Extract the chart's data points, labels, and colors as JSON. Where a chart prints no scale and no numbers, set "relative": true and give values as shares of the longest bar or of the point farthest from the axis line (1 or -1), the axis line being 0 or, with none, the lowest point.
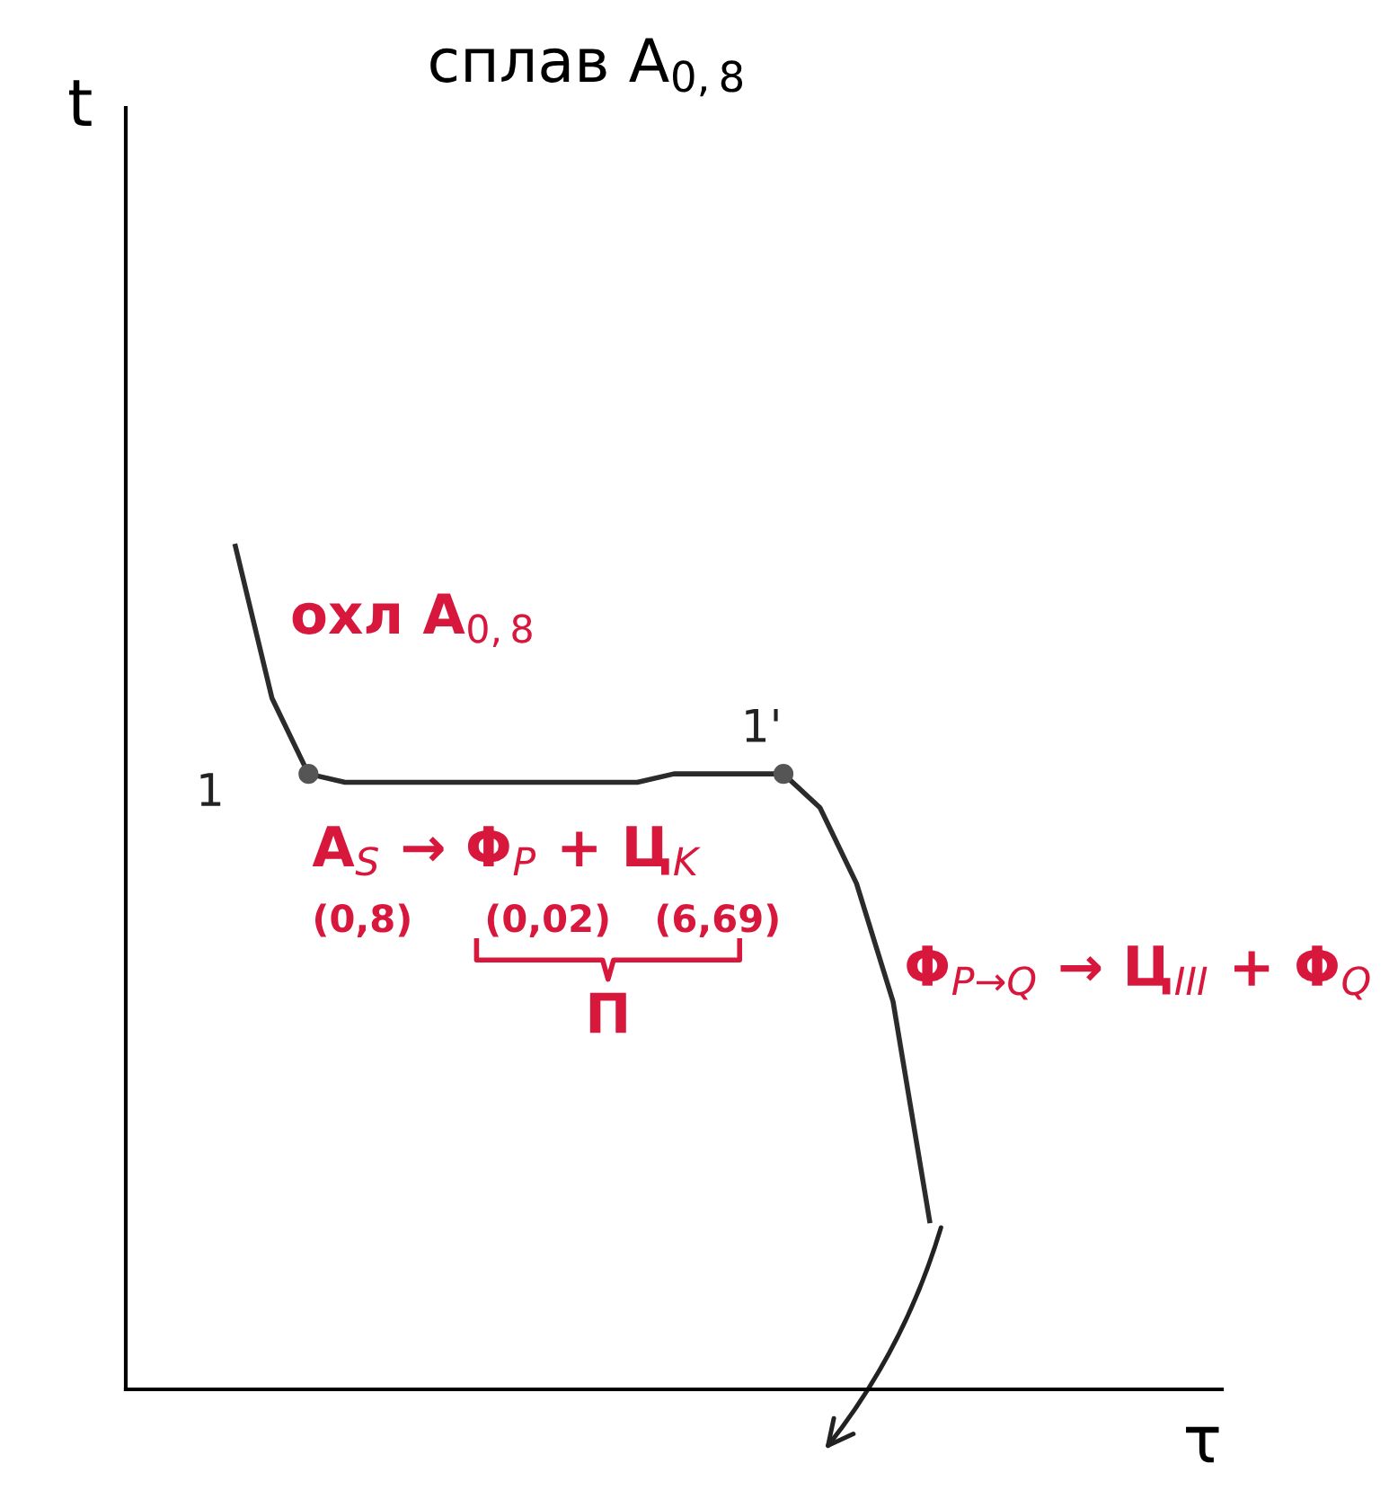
{
  "chart_data": {
    "type": "line",
    "title": "сплав A$_{0,8}$",
    "xlabel": "τ",
    "relative": true,
    "categories": [
      null,
      null,
      null,
      null,
      null,
      null,
      null,
      null,
      null,
      null,
      null,
      null,
      null,
      null,
      null,
      null,
      null,
      null,
      null,
      null
    ],
    "series": [
      {
        "color": "#2b2b2b",
        "values": [
          1,
          0.82,
          0.73,
          0.72,
          0.72,
          0.72,
          0.72,
          0.72,
          0.72,
          0.72,
          0.72,
          0.72,
          0.73,
          0.73,
          0.73,
          0.73,
          0.69,
          0.6,
          0.46,
          0.2
        ]
      }
    ],
    "annotations": [
      "охл A$_{0,8}$",
      "1",
      "1'",
      "A$_{S}$ → Φ$_{P}$ + Ц$_{K}$",
      "(0,8)",
      "(0,02)",
      "(6,69)",
      "П",
      "Φ$_{P→Q}$ → Ц$_{III}$ + Φ$_{Q}$",
      "t"
    ]
  }
}
